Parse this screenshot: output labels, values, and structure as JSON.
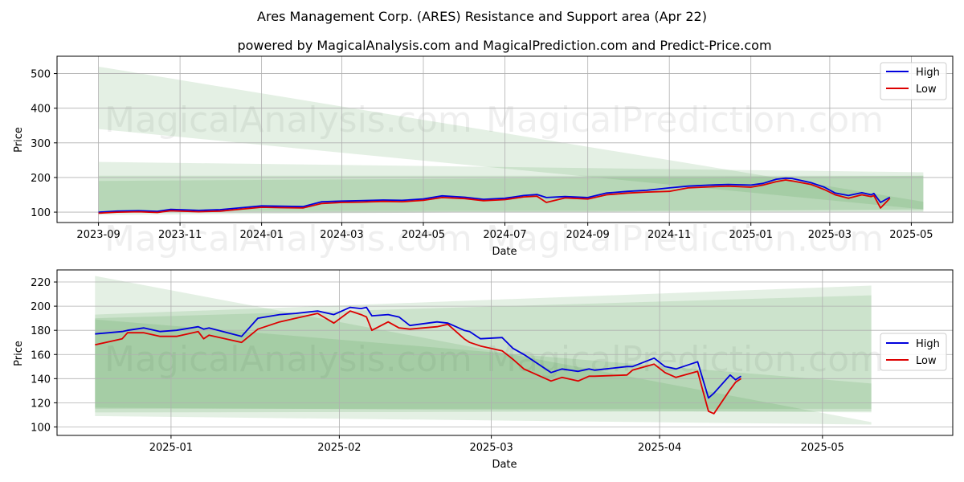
{
  "title": "Ares Management Corp. (ARES) Resistance and Support area (Apr 22)",
  "subtitle": "powered by MagicalAnalysis.com and MagicalPrediction.com and Predict-Price.com",
  "watermarks": [
    "MagicalAnalysis.com",
    "MagicalPrediction.com"
  ],
  "colors": {
    "high": "#0000dd",
    "low": "#dd0000",
    "band": "#2e8b2e",
    "grid": "#b0b0b0"
  },
  "chart_data": [
    {
      "type": "line",
      "name": "full-range",
      "xlabel": "Date",
      "ylabel": "Price",
      "xlim": [
        "2023-08-01",
        "2025-06-01"
      ],
      "ylim": [
        70,
        550
      ],
      "yticks": [
        100,
        200,
        300,
        400,
        500
      ],
      "xticks": [
        "2023-09",
        "2023-11",
        "2024-01",
        "2024-03",
        "2024-05",
        "2024-07",
        "2024-09",
        "2024-11",
        "2025-01",
        "2025-03",
        "2025-05"
      ],
      "legend": {
        "position": "top-right",
        "entries": [
          "High",
          "Low"
        ]
      },
      "bands": [
        {
          "x": [
            "2023-09-01",
            "2025-05-10"
          ],
          "upper": [
            520,
            130
          ],
          "lower": [
            340,
            108
          ]
        },
        {
          "x": [
            "2023-09-01",
            "2025-05-10"
          ],
          "upper": [
            245,
            215
          ],
          "lower": [
            100,
            100
          ]
        },
        {
          "x": [
            "2023-09-01",
            "2025-05-10"
          ],
          "upper": [
            205,
            205
          ],
          "lower": [
            103,
            104
          ]
        },
        {
          "x": [
            "2023-09-01",
            "2025-05-10"
          ],
          "upper": [
            190,
            205
          ],
          "lower": [
            92,
            108
          ]
        }
      ],
      "series": [
        {
          "name": "High",
          "x": [
            "2023-09-01",
            "2023-09-15",
            "2023-10-01",
            "2023-10-15",
            "2023-10-25",
            "2023-11-15",
            "2023-12-01",
            "2023-12-15",
            "2024-01-01",
            "2024-01-15",
            "2024-02-01",
            "2024-02-15",
            "2024-03-01",
            "2024-03-15",
            "2024-04-01",
            "2024-04-15",
            "2024-05-01",
            "2024-05-15",
            "2024-06-01",
            "2024-06-15",
            "2024-07-01",
            "2024-07-15",
            "2024-07-25",
            "2024-08-01",
            "2024-08-15",
            "2024-09-01",
            "2024-09-15",
            "2024-10-01",
            "2024-10-15",
            "2024-11-01",
            "2024-11-15",
            "2024-12-01",
            "2024-12-15",
            "2025-01-01",
            "2025-01-10",
            "2025-01-20",
            "2025-01-27",
            "2025-02-01",
            "2025-02-15",
            "2025-02-25",
            "2025-03-05",
            "2025-03-15",
            "2025-03-25",
            "2025-04-01",
            "2025-04-03",
            "2025-04-08",
            "2025-04-15"
          ],
          "values": [
            100,
            103,
            104,
            102,
            108,
            105,
            107,
            112,
            118,
            117,
            116,
            130,
            132,
            133,
            135,
            134,
            138,
            147,
            143,
            137,
            140,
            148,
            151,
            142,
            145,
            142,
            155,
            160,
            163,
            170,
            175,
            178,
            180,
            178,
            183,
            195,
            198,
            197,
            185,
            172,
            155,
            148,
            156,
            150,
            154,
            128,
            143
          ]
        },
        {
          "name": "Low",
          "x": [
            "2023-09-01",
            "2023-09-15",
            "2023-10-01",
            "2023-10-15",
            "2023-10-25",
            "2023-11-15",
            "2023-12-01",
            "2023-12-15",
            "2024-01-01",
            "2024-01-15",
            "2024-02-01",
            "2024-02-15",
            "2024-03-01",
            "2024-03-15",
            "2024-04-01",
            "2024-04-15",
            "2024-05-01",
            "2024-05-15",
            "2024-06-01",
            "2024-06-15",
            "2024-07-01",
            "2024-07-15",
            "2024-07-25",
            "2024-08-01",
            "2024-08-15",
            "2024-09-01",
            "2024-09-15",
            "2024-10-01",
            "2024-10-15",
            "2024-11-01",
            "2024-11-15",
            "2024-12-01",
            "2024-12-15",
            "2025-01-01",
            "2025-01-10",
            "2025-01-20",
            "2025-01-27",
            "2025-02-01",
            "2025-02-15",
            "2025-02-25",
            "2025-03-05",
            "2025-03-15",
            "2025-03-25",
            "2025-04-01",
            "2025-04-03",
            "2025-04-08",
            "2025-04-15"
          ],
          "values": [
            97,
            100,
            101,
            99,
            104,
            101,
            103,
            108,
            114,
            113,
            112,
            125,
            128,
            129,
            131,
            130,
            134,
            142,
            139,
            133,
            136,
            144,
            146,
            128,
            141,
            138,
            150,
            155,
            158,
            160,
            170,
            173,
            175,
            172,
            178,
            188,
            193,
            190,
            180,
            165,
            150,
            140,
            150,
            145,
            148,
            112,
            140
          ]
        }
      ]
    },
    {
      "type": "line",
      "name": "zoomed",
      "xlabel": "Date",
      "ylabel": "Price",
      "xlim": [
        "2024-12-11",
        "2025-05-25"
      ],
      "ylim": [
        93,
        230
      ],
      "yticks": [
        100,
        120,
        140,
        160,
        180,
        200,
        220
      ],
      "xticks": [
        "2025-01",
        "2025-02",
        "2025-03",
        "2025-04",
        "2025-05"
      ],
      "legend": {
        "position": "center-right",
        "entries": [
          "High",
          "Low"
        ]
      },
      "bands": [
        {
          "x": [
            "2024-12-18",
            "2025-05-10"
          ],
          "upper": [
            225,
            104
          ],
          "lower": [
            109,
            102
          ]
        },
        {
          "x": [
            "2024-12-18",
            "2025-05-10"
          ],
          "upper": [
            193,
            217
          ],
          "lower": [
            112,
            113
          ]
        },
        {
          "x": [
            "2024-12-18",
            "2025-05-10"
          ],
          "upper": [
            190,
            209
          ],
          "lower": [
            115,
            115
          ]
        },
        {
          "x": [
            "2024-12-18",
            "2025-05-10"
          ],
          "upper": [
            189,
            136
          ],
          "lower": [
            116,
            112
          ]
        }
      ],
      "series": [
        {
          "name": "High",
          "x": [
            "2024-12-18",
            "2024-12-23",
            "2024-12-24",
            "2024-12-27",
            "2024-12-30",
            "2025-01-02",
            "2025-01-06",
            "2025-01-07",
            "2025-01-08",
            "2025-01-14",
            "2025-01-17",
            "2025-01-21",
            "2025-01-24",
            "2025-01-28",
            "2025-01-31",
            "2025-02-03",
            "2025-02-05",
            "2025-02-06",
            "2025-02-07",
            "2025-02-10",
            "2025-02-12",
            "2025-02-14",
            "2025-02-19",
            "2025-02-21",
            "2025-02-24",
            "2025-02-25",
            "2025-02-27",
            "2025-03-03",
            "2025-03-05",
            "2025-03-07",
            "2025-03-12",
            "2025-03-14",
            "2025-03-17",
            "2025-03-19",
            "2025-03-20",
            "2025-03-26",
            "2025-03-27",
            "2025-03-31",
            "2025-04-02",
            "2025-04-04",
            "2025-04-08",
            "2025-04-10",
            "2025-04-11",
            "2025-04-14",
            "2025-04-15",
            "2025-04-16"
          ],
          "values": [
            177,
            179,
            180,
            182,
            179,
            180,
            183,
            181,
            182,
            175,
            190,
            193,
            194,
            196,
            193,
            199,
            198,
            199,
            192,
            193,
            191,
            184,
            187,
            186,
            180,
            179,
            173,
            174,
            165,
            160,
            145,
            148,
            146,
            148,
            147,
            150,
            150,
            157,
            150,
            148,
            154,
            124,
            128,
            143,
            139,
            142
          ]
        },
        {
          "name": "Low",
          "x": [
            "2024-12-18",
            "2024-12-23",
            "2024-12-24",
            "2024-12-27",
            "2024-12-30",
            "2025-01-02",
            "2025-01-06",
            "2025-01-07",
            "2025-01-08",
            "2025-01-14",
            "2025-01-17",
            "2025-01-21",
            "2025-01-24",
            "2025-01-28",
            "2025-01-31",
            "2025-02-03",
            "2025-02-05",
            "2025-02-06",
            "2025-02-07",
            "2025-02-10",
            "2025-02-12",
            "2025-02-14",
            "2025-02-19",
            "2025-02-21",
            "2025-02-24",
            "2025-02-25",
            "2025-02-27",
            "2025-03-03",
            "2025-03-05",
            "2025-03-07",
            "2025-03-12",
            "2025-03-14",
            "2025-03-17",
            "2025-03-19",
            "2025-03-20",
            "2025-03-26",
            "2025-03-27",
            "2025-03-31",
            "2025-04-02",
            "2025-04-04",
            "2025-04-08",
            "2025-04-10",
            "2025-04-11",
            "2025-04-14",
            "2025-04-15",
            "2025-04-16"
          ],
          "values": [
            168,
            173,
            178,
            178,
            175,
            175,
            179,
            173,
            176,
            170,
            181,
            187,
            190,
            194,
            186,
            196,
            193,
            191,
            180,
            187,
            182,
            181,
            183,
            185,
            173,
            170,
            167,
            163,
            156,
            148,
            138,
            141,
            138,
            142,
            142,
            143,
            147,
            152,
            145,
            141,
            146,
            113,
            111,
            131,
            137,
            140
          ]
        }
      ]
    }
  ]
}
